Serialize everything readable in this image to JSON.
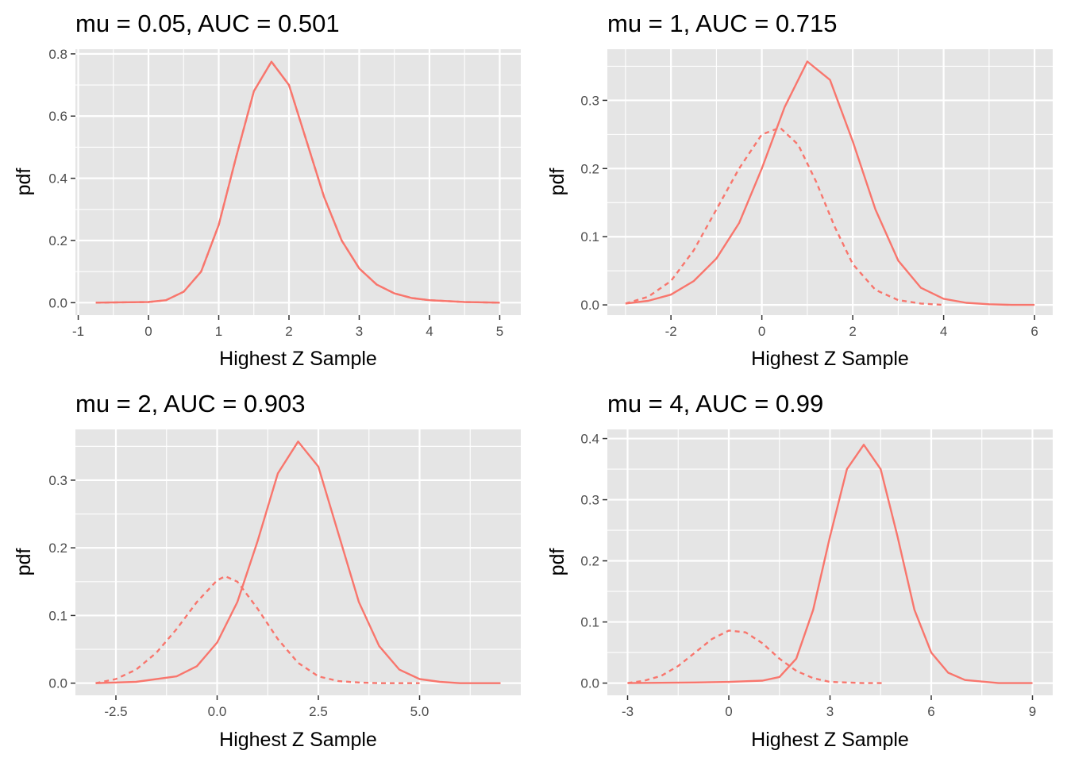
{
  "colors": {
    "panel_background": "#e5e5e5",
    "grid_major": "#ffffff",
    "curve": "#f8766d",
    "tick": "#333333",
    "tick_label": "#4d4d4d"
  },
  "chart_data": [
    {
      "type": "line",
      "title": "mu = 0.05, AUC = 0.501",
      "xlabel": "Highest Z Sample",
      "ylabel": "pdf",
      "xlim": [
        -1.04,
        5.3
      ],
      "ylim": [
        -0.04,
        0.815
      ],
      "xticks": [
        -1,
        0,
        1,
        2,
        3,
        4,
        5
      ],
      "xtick_labels": [
        "-1",
        "0",
        "1",
        "2",
        "3",
        "4",
        "5"
      ],
      "yticks": [
        0.0,
        0.2,
        0.4,
        0.6,
        0.8
      ],
      "ytick_labels": [
        "0.0",
        "0.2",
        "0.4",
        "0.6",
        "0.8"
      ],
      "grid": true,
      "series": [
        {
          "style": "solid",
          "x": [
            -0.75,
            0.0,
            0.25,
            0.5,
            0.75,
            1.0,
            1.25,
            1.5,
            1.75,
            2.0,
            2.25,
            2.5,
            2.75,
            3.0,
            3.25,
            3.5,
            3.75,
            4.0,
            4.5,
            5.0
          ],
          "y": [
            0.0,
            0.002,
            0.008,
            0.035,
            0.1,
            0.25,
            0.47,
            0.68,
            0.775,
            0.7,
            0.52,
            0.34,
            0.2,
            0.11,
            0.058,
            0.03,
            0.015,
            0.008,
            0.002,
            0.0
          ]
        },
        {
          "style": "dashed",
          "x": [
            -0.75,
            0.0,
            0.25,
            0.5,
            0.75,
            1.0,
            1.25,
            1.5,
            1.75,
            2.0,
            2.25,
            2.5,
            2.75,
            3.0,
            3.25,
            3.5,
            3.75,
            4.0,
            4.5,
            5.0
          ],
          "y": [
            0.0,
            0.002,
            0.008,
            0.035,
            0.1,
            0.25,
            0.47,
            0.68,
            0.775,
            0.7,
            0.52,
            0.34,
            0.2,
            0.11,
            0.058,
            0.03,
            0.015,
            0.008,
            0.002,
            0.0
          ]
        }
      ]
    },
    {
      "type": "line",
      "title": "mu = 1, AUC = 0.715",
      "xlabel": "Highest Z Sample",
      "ylabel": "pdf",
      "xlim": [
        -3.4,
        6.4
      ],
      "ylim": [
        -0.015,
        0.375
      ],
      "xticks": [
        -2,
        0,
        2,
        4,
        6
      ],
      "xtick_labels": [
        "-2",
        "0",
        "2",
        "4",
        "6"
      ],
      "yticks": [
        0.0,
        0.1,
        0.2,
        0.3
      ],
      "ytick_labels": [
        "0.0",
        "0.1",
        "0.2",
        "0.3"
      ],
      "grid": true,
      "series": [
        {
          "style": "solid",
          "x": [
            -3.0,
            -2.5,
            -2.0,
            -1.5,
            -1.0,
            -0.5,
            0.0,
            0.5,
            1.0,
            1.5,
            2.0,
            2.5,
            3.0,
            3.5,
            4.0,
            4.5,
            5.0,
            5.5,
            6.0
          ],
          "y": [
            0.002,
            0.006,
            0.015,
            0.035,
            0.068,
            0.12,
            0.2,
            0.29,
            0.357,
            0.33,
            0.24,
            0.14,
            0.065,
            0.025,
            0.009,
            0.003,
            0.001,
            0.0,
            0.0
          ]
        },
        {
          "style": "dashed",
          "x": [
            -3.0,
            -2.5,
            -2.0,
            -1.5,
            -1.0,
            -0.5,
            0.0,
            0.4,
            0.8,
            1.2,
            1.6,
            2.0,
            2.5,
            3.0,
            3.5,
            4.0
          ],
          "y": [
            0.002,
            0.012,
            0.035,
            0.08,
            0.14,
            0.2,
            0.25,
            0.26,
            0.235,
            0.18,
            0.115,
            0.06,
            0.022,
            0.007,
            0.002,
            0.0
          ]
        }
      ]
    },
    {
      "type": "line",
      "title": "mu = 2, AUC = 0.903",
      "xlabel": "Highest Z Sample",
      "ylabel": "pdf",
      "xlim": [
        -3.5,
        7.5
      ],
      "ylim": [
        -0.018,
        0.375
      ],
      "xticks": [
        -2.5,
        0.0,
        2.5,
        5.0
      ],
      "xtick_labels": [
        "-2.5",
        "0.0",
        "2.5",
        "5.0"
      ],
      "yticks": [
        0.0,
        0.1,
        0.2,
        0.3
      ],
      "ytick_labels": [
        "0.0",
        "0.1",
        "0.2",
        "0.3"
      ],
      "grid": true,
      "series": [
        {
          "style": "solid",
          "x": [
            -3.0,
            -2.0,
            -1.0,
            -0.5,
            0.0,
            0.5,
            1.0,
            1.5,
            2.0,
            2.5,
            3.0,
            3.5,
            4.0,
            4.5,
            5.0,
            5.5,
            6.0,
            7.0
          ],
          "y": [
            0.0,
            0.002,
            0.01,
            0.025,
            0.06,
            0.12,
            0.21,
            0.31,
            0.357,
            0.32,
            0.22,
            0.12,
            0.055,
            0.02,
            0.006,
            0.002,
            0.0,
            0.0
          ]
        },
        {
          "style": "dashed",
          "x": [
            -3.0,
            -2.5,
            -2.0,
            -1.5,
            -1.0,
            -0.5,
            0.0,
            0.2,
            0.5,
            1.0,
            1.5,
            2.0,
            2.5,
            3.0,
            3.5,
            4.0,
            5.0
          ],
          "y": [
            0.0,
            0.006,
            0.02,
            0.045,
            0.08,
            0.12,
            0.152,
            0.158,
            0.15,
            0.11,
            0.065,
            0.03,
            0.01,
            0.003,
            0.001,
            0.0,
            0.0
          ]
        }
      ]
    },
    {
      "type": "line",
      "title": "mu = 4, AUC = 0.99",
      "xlabel": "Highest Z Sample",
      "ylabel": "pdf",
      "xlim": [
        -3.6,
        9.6
      ],
      "ylim": [
        -0.02,
        0.415
      ],
      "xticks": [
        -3,
        0,
        3,
        6,
        9
      ],
      "xtick_labels": [
        "-3",
        "0",
        "3",
        "6",
        "9"
      ],
      "yticks": [
        0.0,
        0.1,
        0.2,
        0.3,
        0.4
      ],
      "ytick_labels": [
        "0.0",
        "0.1",
        "0.2",
        "0.3",
        "0.4"
      ],
      "grid": true,
      "series": [
        {
          "style": "solid",
          "x": [
            -3.0,
            -1.0,
            0.0,
            1.0,
            1.5,
            2.0,
            2.5,
            3.0,
            3.5,
            4.0,
            4.5,
            5.0,
            5.5,
            6.0,
            6.5,
            7.0,
            8.0,
            9.0
          ],
          "y": [
            0.0,
            0.001,
            0.002,
            0.004,
            0.01,
            0.04,
            0.12,
            0.24,
            0.35,
            0.39,
            0.35,
            0.24,
            0.12,
            0.05,
            0.017,
            0.005,
            0.0,
            0.0
          ]
        },
        {
          "style": "dashed",
          "x": [
            -3.0,
            -2.5,
            -2.0,
            -1.5,
            -1.0,
            -0.5,
            0.0,
            0.5,
            1.0,
            1.5,
            2.0,
            2.5,
            3.0,
            3.5,
            4.0,
            4.6
          ],
          "y": [
            0.0,
            0.004,
            0.012,
            0.028,
            0.05,
            0.072,
            0.086,
            0.083,
            0.065,
            0.04,
            0.02,
            0.008,
            0.002,
            0.001,
            0.0,
            0.0
          ]
        }
      ]
    }
  ]
}
